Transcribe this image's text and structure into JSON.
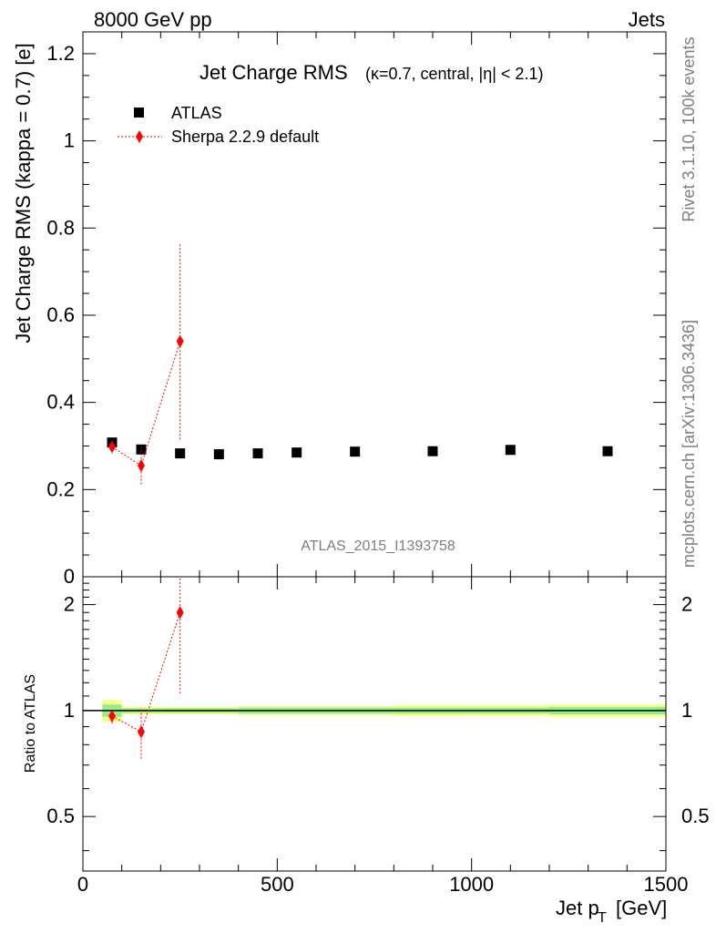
{
  "header": {
    "left": "8000 GeV pp",
    "right": "Jets"
  },
  "side": {
    "rivet": "Rivet 3.1.10,  100k events",
    "mcplots": "mcplots.cern.ch [arXiv:1306.3436]"
  },
  "colors": {
    "data": "#000000",
    "mc": "#ff0000",
    "band_inner": "#90ee90",
    "band_outer": "#ffff80",
    "watermark": "#7f7f7f"
  },
  "chart_data": [
    {
      "type": "scatter",
      "title_main": "Jet Charge RMS",
      "title_sub": "(κ=0.7, central, |η| < 2.1)",
      "ylabel": "Jet Charge RMS (kappa = 0.7) [e]",
      "watermark": "ATLAS_2015_I1393758",
      "xlim": [
        0,
        1500
      ],
      "ylim": [
        0,
        1.25
      ],
      "yticks": [
        0,
        0.2,
        0.4,
        0.6,
        0.8,
        1,
        1.2
      ],
      "ytick_labels": [
        "0",
        "0.2",
        "0.4",
        "0.6",
        "0.8",
        "1",
        "1.2"
      ],
      "legend_position": "top-left",
      "series": [
        {
          "name": "ATLAS",
          "marker": "square",
          "x": [
            75,
            150,
            250,
            350,
            450,
            550,
            700,
            900,
            1100,
            1350
          ],
          "y": [
            0.308,
            0.292,
            0.283,
            0.281,
            0.283,
            0.285,
            0.287,
            0.288,
            0.291,
            0.288
          ]
        },
        {
          "name": "Sherpa 2.2.9 default",
          "marker": "diamond",
          "x": [
            75,
            150,
            250
          ],
          "y": [
            0.298,
            0.255,
            0.54
          ],
          "yerr_low": [
            0.283,
            0.212,
            0.315
          ],
          "yerr_high": [
            0.312,
            0.298,
            0.765
          ]
        }
      ]
    },
    {
      "type": "scatter",
      "ylabel": "Ratio to ATLAS",
      "xlabel": "Jet p_T [GeV]",
      "xlabel_main": "Jet p",
      "xlabel_sub": "T",
      "xlabel_unit": "[GeV]",
      "xlim": [
        0,
        1500
      ],
      "ylim": [
        0.35,
        2.4
      ],
      "scale_y": "log",
      "xticks": [
        0,
        500,
        1000,
        1500
      ],
      "xtick_labels": [
        "0",
        "500",
        "1000",
        "1500"
      ],
      "yticks": [
        0.5,
        1,
        2
      ],
      "ytick_labels": [
        "0.5",
        "1",
        "2"
      ],
      "reference_band": {
        "x_edges": [
          50,
          100,
          200,
          300,
          400,
          500,
          600,
          800,
          1000,
          1200,
          1500
        ],
        "inner_low": [
          0.96,
          0.985,
          0.985,
          0.985,
          0.98,
          0.98,
          0.98,
          0.98,
          0.98,
          0.975
        ],
        "inner_high": [
          1.04,
          1.015,
          1.015,
          1.015,
          1.02,
          1.02,
          1.02,
          1.02,
          1.02,
          1.025
        ],
        "outer_low": [
          0.93,
          0.975,
          0.975,
          0.975,
          0.97,
          0.97,
          0.97,
          0.965,
          0.965,
          0.96
        ],
        "outer_high": [
          1.07,
          1.025,
          1.025,
          1.025,
          1.03,
          1.03,
          1.03,
          1.035,
          1.035,
          1.04
        ]
      },
      "series": [
        {
          "name": "Sherpa 2.2.9 default",
          "marker": "diamond",
          "x": [
            75,
            150,
            250
          ],
          "y": [
            0.965,
            0.87,
            1.9
          ],
          "yerr_low": [
            0.92,
            0.73,
            1.12
          ],
          "yerr_high": [
            1.01,
            1.02,
            2.4
          ]
        }
      ]
    }
  ]
}
